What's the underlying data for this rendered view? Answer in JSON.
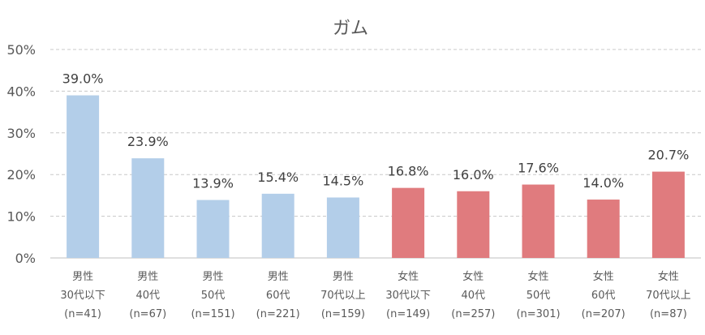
{
  "chart_data": {
    "type": "bar",
    "title": "ガム",
    "xlabel": "",
    "ylabel": "",
    "ylim": [
      0,
      50
    ],
    "yticks": [
      "0%",
      "10%",
      "20%",
      "30%",
      "40%",
      "50%"
    ],
    "grid": true,
    "categories": [
      [
        "男性",
        "30代以下",
        "(n=41)"
      ],
      [
        "男性",
        "40代",
        "(n=67)"
      ],
      [
        "男性",
        "50代",
        "(n=151)"
      ],
      [
        "男性",
        "60代",
        "(n=221)"
      ],
      [
        "男性",
        "70代以上",
        "(n=159)"
      ],
      [
        "女性",
        "30代以下",
        "(n=149)"
      ],
      [
        "女性",
        "40代",
        "(n=257)"
      ],
      [
        "女性",
        "50代",
        "(n=301)"
      ],
      [
        "女性",
        "60代",
        "(n=207)"
      ],
      [
        "女性",
        "70代以上",
        "(n=87)"
      ]
    ],
    "values": [
      39.0,
      23.9,
      13.9,
      15.4,
      14.5,
      16.8,
      16.0,
      17.6,
      14.0,
      20.7
    ],
    "value_labels": [
      "39.0%",
      "23.9%",
      "13.9%",
      "15.4%",
      "14.5%",
      "16.8%",
      "16.0%",
      "17.6%",
      "14.0%",
      "20.7%"
    ],
    "colors": [
      "#b3cee9",
      "#b3cee9",
      "#b3cee9",
      "#b3cee9",
      "#b3cee9",
      "#e07b7e",
      "#e07b7e",
      "#e07b7e",
      "#e07b7e",
      "#e07b7e"
    ]
  }
}
